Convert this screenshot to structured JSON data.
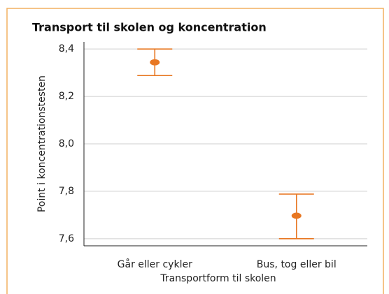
{
  "chart_data": {
    "type": "errorbar",
    "title": "Transport til skolen og koncentration",
    "x_label": "Transportform til skolen",
    "y_label": "Point i koncentrationstesten",
    "categories": [
      "Går eller cykler",
      "Bus, tog eller bil"
    ],
    "values": [
      8.344,
      7.697
    ],
    "lower": [
      8.288,
      7.6
    ],
    "upper": [
      8.4,
      7.788
    ],
    "color": "#e87722",
    "ylim": [
      7.57,
      8.43
    ],
    "yticks": [
      {
        "value": 7.6,
        "label": "7,6"
      },
      {
        "value": 7.8,
        "label": "7,8"
      },
      {
        "value": 8.0,
        "label": "8,0"
      },
      {
        "value": 8.2,
        "label": "8,2"
      },
      {
        "value": 8.4,
        "label": "8,4"
      }
    ],
    "grid": true
  }
}
